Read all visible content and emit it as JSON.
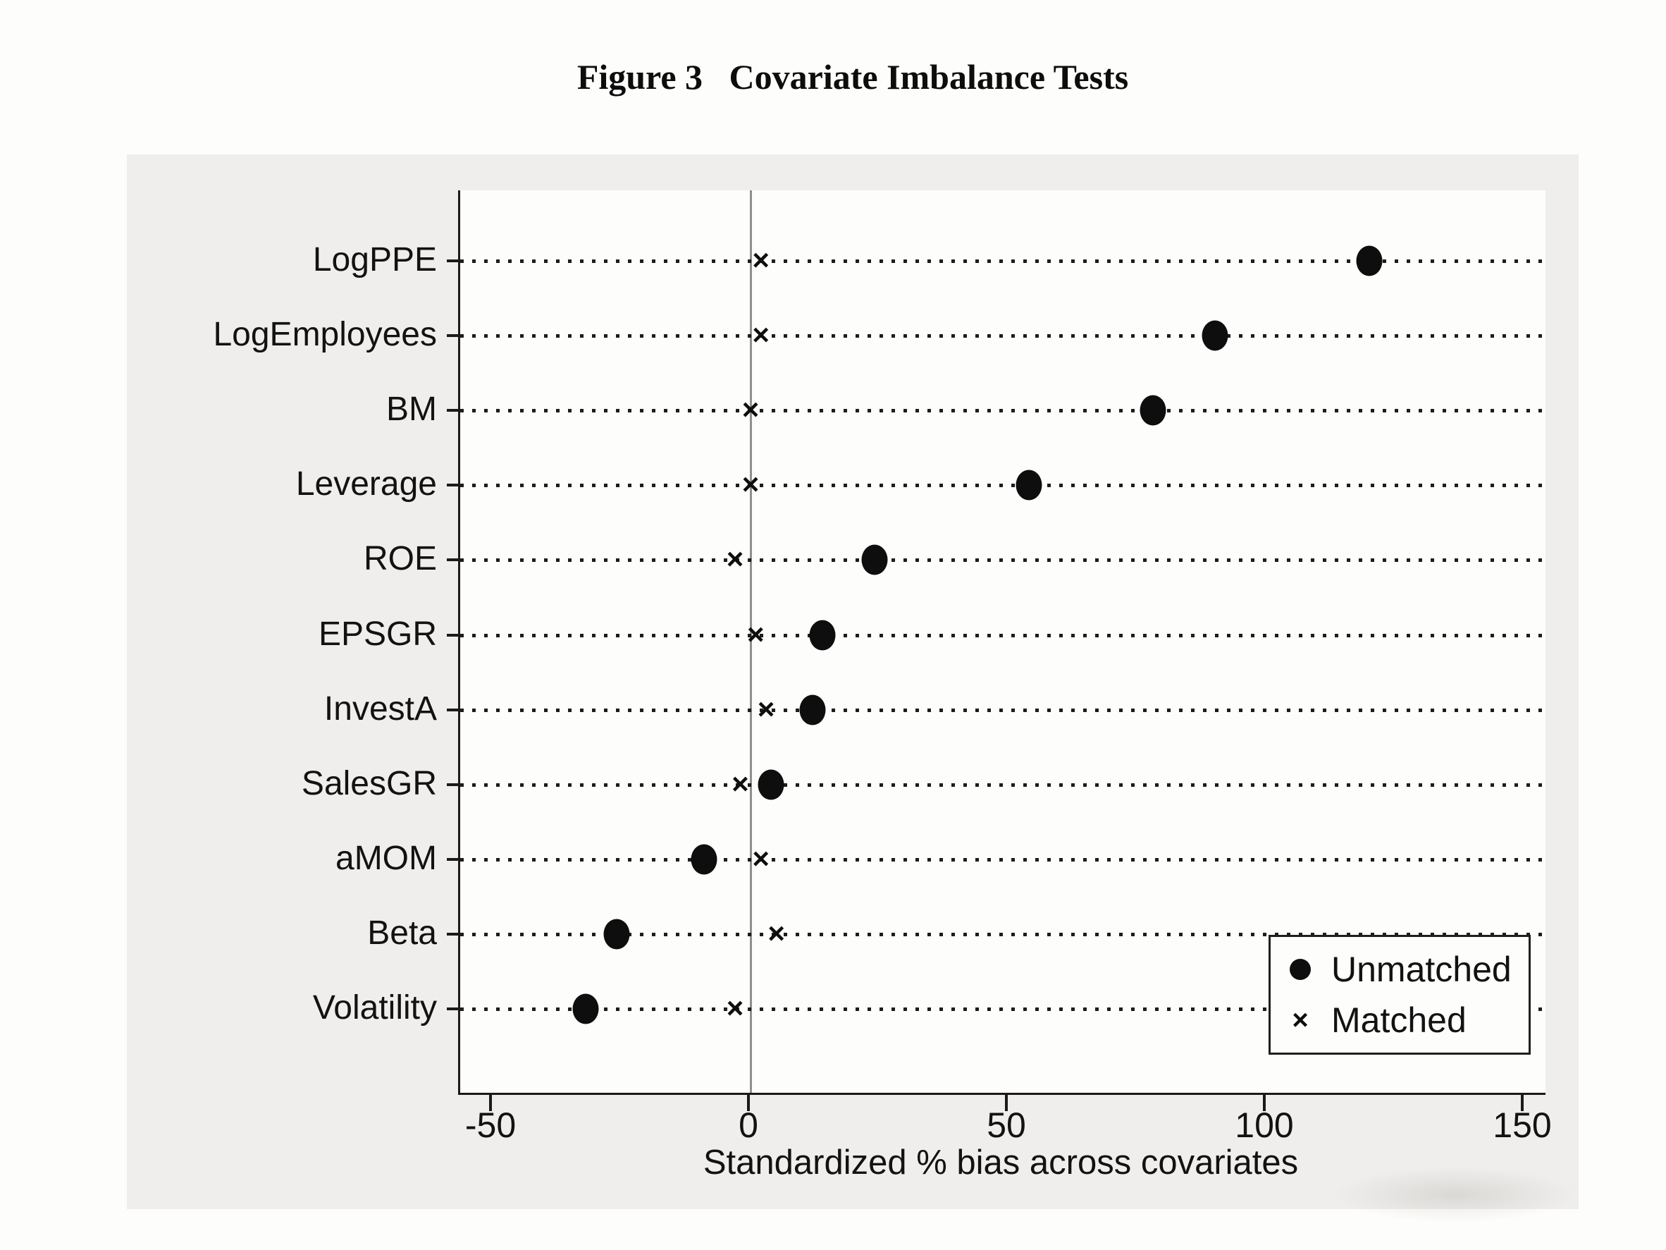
{
  "title": "Figure 3   Covariate Imbalance Tests",
  "chart_data": {
    "type": "scatter",
    "title": "Figure 3   Covariate Imbalance Tests",
    "xlabel": "Standardized % bias across covariates",
    "categories": [
      "LogPPE",
      "LogEmployees",
      "BM",
      "Leverage",
      "ROE",
      "EPSGR",
      "InvestA",
      "SalesGR",
      "aMOM",
      "Beta",
      "Volatility"
    ],
    "series": [
      {
        "name": "Unmatched",
        "marker": "circle",
        "values": [
          120,
          90,
          78,
          54,
          24,
          14,
          12,
          4,
          -9,
          -26,
          -32
        ]
      },
      {
        "name": "Matched",
        "marker": "x",
        "values": [
          2,
          2,
          0,
          0,
          -3,
          1,
          3,
          -2,
          2,
          5,
          -3
        ]
      }
    ],
    "x_ticks": [
      -50,
      0,
      50,
      100,
      150
    ],
    "xlim": [
      -57,
      154
    ],
    "zero_reference_line": 0,
    "grid": "dotted-horizontal-leaders",
    "legend_position": "bottom-right"
  },
  "legend": {
    "items": [
      {
        "symbol": "circle",
        "label": "Unmatched"
      },
      {
        "symbol": "x",
        "label": "Matched"
      }
    ]
  },
  "colors": {
    "marker": "#0e0e0e",
    "axis": "#1a1a1a",
    "zero_line": "#8f8f8f",
    "panel_background": "#efeeec",
    "plot_background": "#fdfdfc",
    "text": "#121212"
  }
}
